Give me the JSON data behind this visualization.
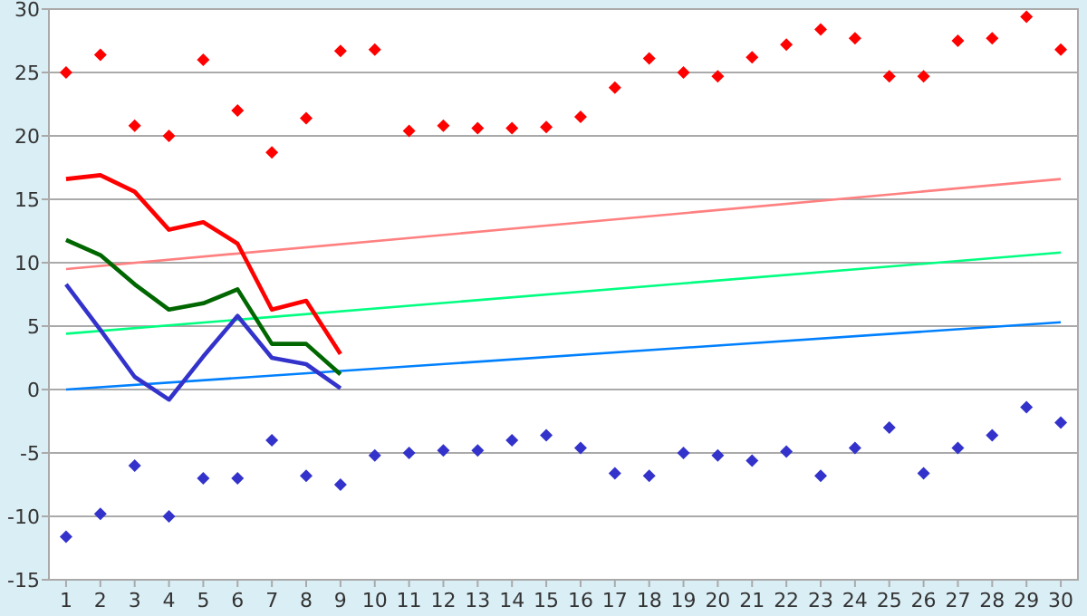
{
  "chart_data": {
    "type": "scatter",
    "x": [
      1,
      2,
      3,
      4,
      5,
      6,
      7,
      8,
      9,
      10,
      11,
      12,
      13,
      14,
      15,
      16,
      17,
      18,
      19,
      20,
      21,
      22,
      23,
      24,
      25,
      26,
      27,
      28,
      29,
      30
    ],
    "xlim": [
      0.5,
      30.5
    ],
    "xticks": [
      1,
      2,
      3,
      4,
      5,
      6,
      7,
      8,
      9,
      10,
      11,
      12,
      13,
      14,
      15,
      16,
      17,
      18,
      19,
      20,
      21,
      22,
      23,
      24,
      25,
      26,
      27,
      28,
      29,
      30
    ],
    "ylim": [
      -15,
      30
    ],
    "yticks": [
      -15,
      -10,
      -5,
      0,
      5,
      10,
      15,
      20,
      25,
      30
    ],
    "grid": "y",
    "series": [
      {
        "marker": "diamond",
        "color": "#ff0000",
        "values": [
          25,
          26.4,
          20.8,
          20,
          26,
          22,
          18.7,
          21.4,
          26.7,
          26.8,
          20.4,
          20.8,
          20.6,
          20.6,
          20.7,
          21.5,
          23.8,
          26.1,
          25,
          24.7,
          26.2,
          27.2,
          28.4,
          27.7,
          24.7,
          24.7,
          27.5,
          27.7,
          29.4,
          26.8
        ]
      },
      {
        "marker": "diamond",
        "color": "#3333cc",
        "values": [
          -11.6,
          -9.8,
          -6,
          -10,
          -7,
          -7,
          -4,
          -6.8,
          -7.5,
          -5.2,
          -5,
          -4.8,
          -4.8,
          -4,
          -3.6,
          -4.6,
          -6.6,
          -6.8,
          -5,
          -5.2,
          -5.6,
          -4.9,
          -6.8,
          -4.6,
          -3,
          -6.6,
          -4.6,
          -3.6,
          -1.4,
          -2.6
        ]
      },
      {
        "type": "line",
        "marker": "none",
        "color": "#ff8080",
        "x": [
          1,
          30
        ],
        "values": [
          9.5,
          16.6
        ]
      },
      {
        "type": "line",
        "marker": "none",
        "color": "#00ff80",
        "x": [
          1,
          30
        ],
        "values": [
          4.4,
          10.8
        ]
      },
      {
        "type": "line",
        "marker": "none",
        "color": "#0080ff",
        "x": [
          1,
          30
        ],
        "values": [
          0,
          5.3
        ]
      },
      {
        "type": "line",
        "marker": "none",
        "color": "#ff0000",
        "x": [
          1,
          2,
          3,
          4,
          5,
          6,
          7,
          8,
          9
        ],
        "values": [
          16.6,
          16.9,
          15.6,
          12.6,
          13.2,
          11.5,
          6.3,
          7,
          2.8
        ]
      },
      {
        "type": "line",
        "marker": "none",
        "color": "#006600",
        "x": [
          1,
          2,
          3,
          4,
          5,
          6,
          7,
          8,
          9
        ],
        "values": [
          11.8,
          10.6,
          8.3,
          6.3,
          6.8,
          7.9,
          3.6,
          3.6,
          1.2
        ]
      },
      {
        "type": "line",
        "marker": "none",
        "color": "#3333cc",
        "x": [
          1,
          2,
          3,
          4,
          5,
          6,
          7,
          8,
          9
        ],
        "values": [
          8.3,
          4.7,
          1,
          -0.8,
          2.6,
          5.8,
          2.5,
          2,
          0.1
        ]
      }
    ]
  }
}
